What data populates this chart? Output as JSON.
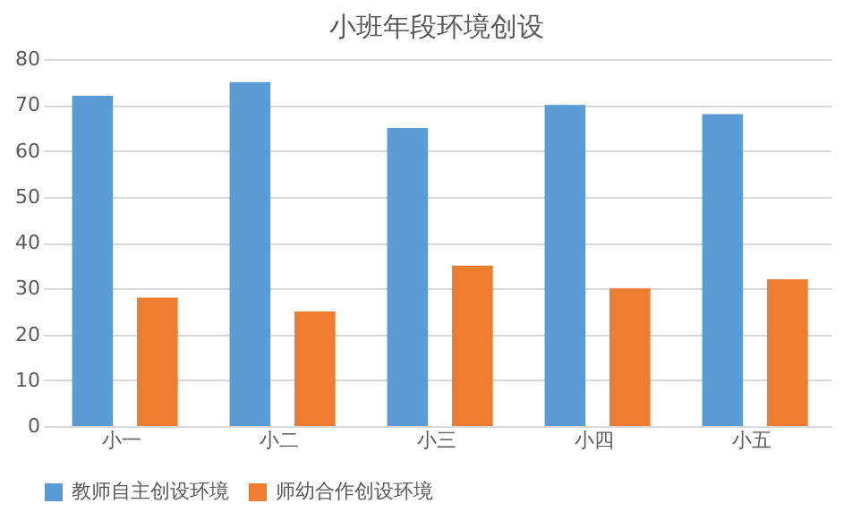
{
  "chart_data": {
    "type": "bar",
    "title": "小班年段环境创设",
    "categories": [
      "小一",
      "小二",
      "小三",
      "小四",
      "小五"
    ],
    "series": [
      {
        "name": "教师自主创设环境",
        "color": "#5b9bd5",
        "values": [
          72,
          75,
          65,
          70,
          68
        ]
      },
      {
        "name": "师幼合作创设环境",
        "color": "#ed7d31",
        "values": [
          28,
          25,
          35,
          30,
          32
        ]
      }
    ],
    "ylim": [
      0,
      80
    ],
    "yticks": [
      0,
      10,
      20,
      30,
      40,
      50,
      60,
      70,
      80
    ],
    "grid": "y",
    "legend": "bottom"
  }
}
